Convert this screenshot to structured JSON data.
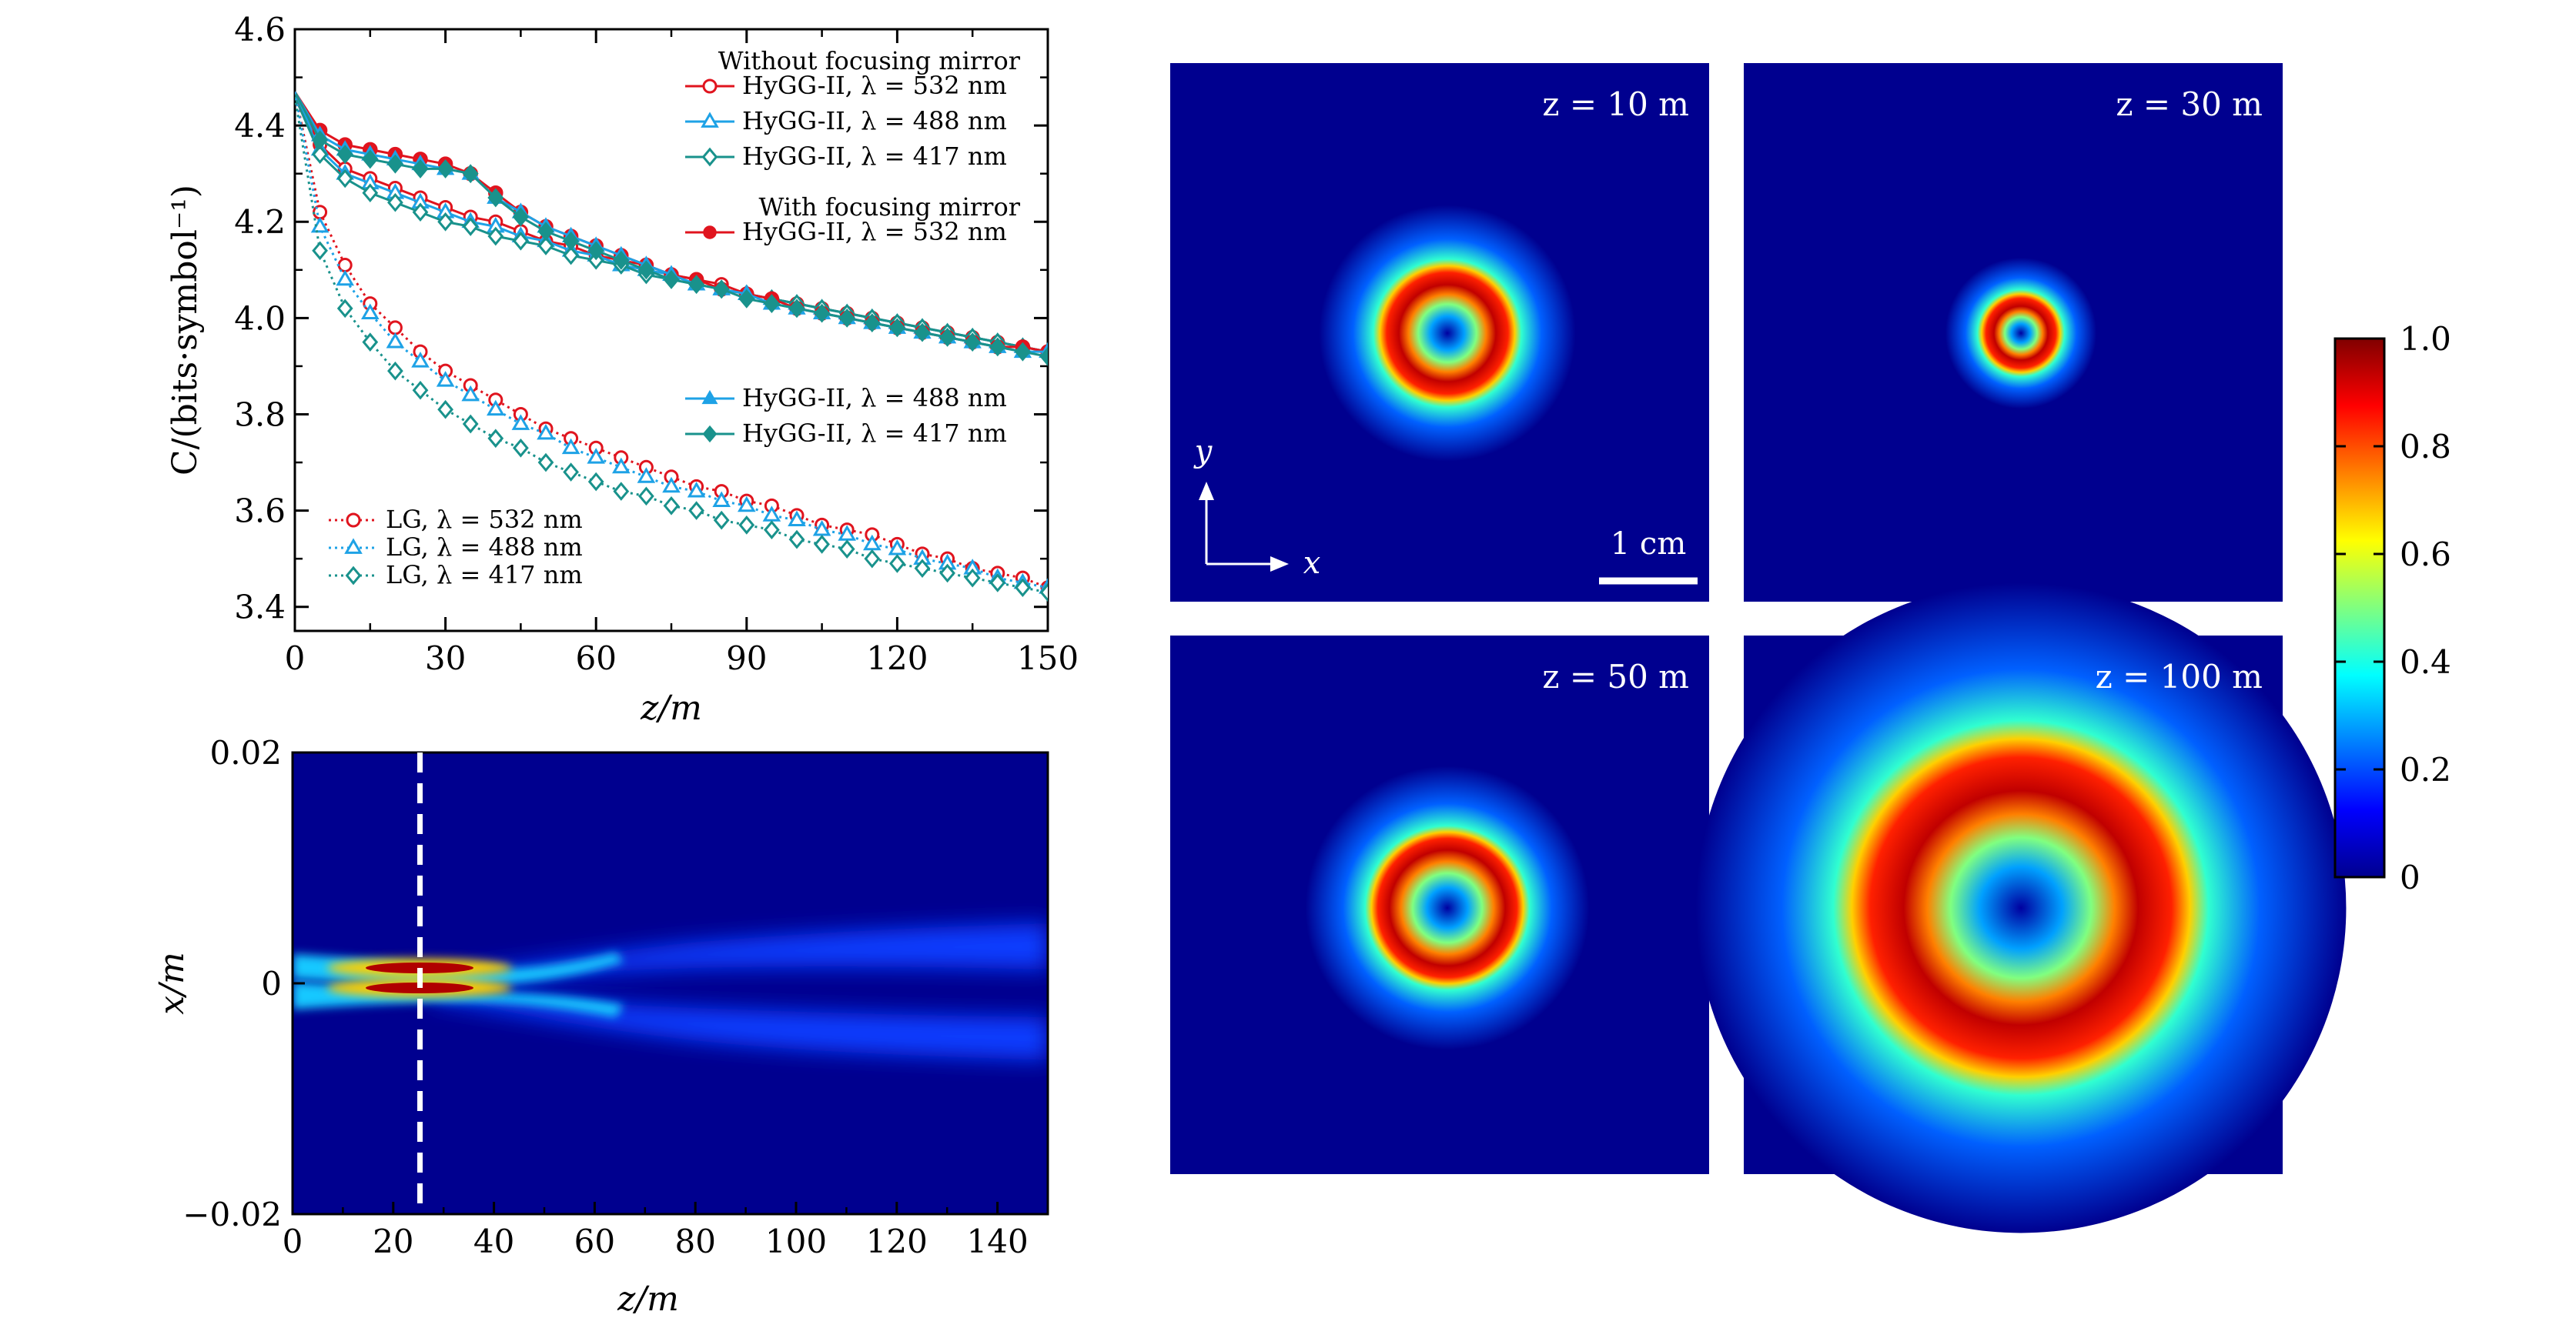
{
  "chart_data": [
    {
      "type": "line",
      "xlabel": "z/m",
      "ylabel": "C/(bits·symbol⁻¹)",
      "xlim": [
        0,
        150
      ],
      "ylim": [
        3.35,
        4.6
      ],
      "xticks": [
        "0",
        "30",
        "60",
        "90",
        "120",
        "150"
      ],
      "yticks": [
        "3.4",
        "3.6",
        "3.8",
        "4.0",
        "4.2",
        "4.4",
        "4.6"
      ],
      "legend_headers": [
        "Without focusing mirror",
        "With focusing mirror"
      ],
      "x": [
        0,
        5,
        10,
        15,
        20,
        25,
        30,
        35,
        40,
        45,
        50,
        55,
        60,
        65,
        70,
        75,
        80,
        85,
        90,
        95,
        100,
        105,
        110,
        115,
        120,
        125,
        130,
        135,
        140,
        145,
        150
      ],
      "series": [
        {
          "name": "HyGG-II, λ = 532 nm",
          "group": "without",
          "color": "#e0141e",
          "marker": "circle-open",
          "values": [
            4.47,
            4.36,
            4.31,
            4.29,
            4.27,
            4.25,
            4.23,
            4.21,
            4.2,
            4.18,
            4.16,
            4.15,
            4.13,
            4.12,
            4.11,
            4.09,
            4.08,
            4.07,
            4.05,
            4.04,
            4.03,
            4.02,
            4.01,
            4.0,
            3.99,
            3.98,
            3.97,
            3.96,
            3.95,
            3.94,
            3.93
          ]
        },
        {
          "name": "HyGG-II, λ = 488 nm",
          "group": "without",
          "color": "#1ea2e6",
          "marker": "triangle-open",
          "values": [
            4.47,
            4.35,
            4.3,
            4.28,
            4.26,
            4.24,
            4.22,
            4.2,
            4.19,
            4.17,
            4.16,
            4.14,
            4.13,
            4.11,
            4.1,
            4.09,
            4.07,
            4.06,
            4.05,
            4.04,
            4.03,
            4.02,
            4.01,
            4.0,
            3.99,
            3.98,
            3.97,
            3.96,
            3.95,
            3.94,
            3.93
          ]
        },
        {
          "name": "HyGG-II, λ = 417 nm",
          "group": "without",
          "color": "#19928c",
          "marker": "diamond-open",
          "values": [
            4.46,
            4.34,
            4.29,
            4.26,
            4.24,
            4.22,
            4.2,
            4.19,
            4.17,
            4.16,
            4.15,
            4.13,
            4.12,
            4.11,
            4.09,
            4.08,
            4.07,
            4.06,
            4.05,
            4.04,
            4.03,
            4.02,
            4.01,
            4.0,
            3.99,
            3.98,
            3.97,
            3.96,
            3.95,
            3.94,
            3.93
          ]
        },
        {
          "name": "HyGG-II, λ = 532 nm",
          "group": "with",
          "color": "#e0141e",
          "marker": "circle-filled",
          "values": [
            4.47,
            4.39,
            4.36,
            4.35,
            4.34,
            4.33,
            4.32,
            4.3,
            4.26,
            4.22,
            4.19,
            4.17,
            4.15,
            4.13,
            4.11,
            4.09,
            4.08,
            4.06,
            4.05,
            4.04,
            4.02,
            4.01,
            4.0,
            3.99,
            3.98,
            3.97,
            3.96,
            3.95,
            3.94,
            3.94,
            3.93
          ]
        },
        {
          "name": "HyGG-II, λ = 488 nm",
          "group": "with",
          "color": "#1ea2e6",
          "marker": "triangle-filled",
          "values": [
            4.47,
            4.38,
            4.35,
            4.34,
            4.33,
            4.32,
            4.31,
            4.3,
            4.25,
            4.22,
            4.19,
            4.17,
            4.15,
            4.13,
            4.11,
            4.09,
            4.07,
            4.06,
            4.05,
            4.03,
            4.02,
            4.01,
            4.0,
            3.99,
            3.98,
            3.97,
            3.96,
            3.95,
            3.94,
            3.93,
            3.93
          ]
        },
        {
          "name": "HyGG-II, λ = 417 nm",
          "group": "with",
          "color": "#19928c",
          "marker": "diamond-filled",
          "values": [
            4.47,
            4.37,
            4.34,
            4.33,
            4.32,
            4.31,
            4.31,
            4.3,
            4.25,
            4.21,
            4.18,
            4.16,
            4.14,
            4.12,
            4.1,
            4.08,
            4.07,
            4.06,
            4.04,
            4.03,
            4.02,
            4.01,
            4.0,
            3.99,
            3.98,
            3.97,
            3.96,
            3.95,
            3.94,
            3.93,
            3.92
          ]
        },
        {
          "name": "LG, λ = 532 nm",
          "group": "lg",
          "color": "#e0141e",
          "marker": "circle-open",
          "dotted": true,
          "values": [
            4.47,
            4.22,
            4.11,
            4.03,
            3.98,
            3.93,
            3.89,
            3.86,
            3.83,
            3.8,
            3.77,
            3.75,
            3.73,
            3.71,
            3.69,
            3.67,
            3.65,
            3.64,
            3.62,
            3.61,
            3.59,
            3.57,
            3.56,
            3.55,
            3.53,
            3.51,
            3.5,
            3.48,
            3.47,
            3.46,
            3.44
          ]
        },
        {
          "name": "LG, λ = 488 nm",
          "group": "lg",
          "color": "#1ea2e6",
          "marker": "triangle-open",
          "dotted": true,
          "values": [
            4.47,
            4.19,
            4.08,
            4.01,
            3.95,
            3.91,
            3.87,
            3.84,
            3.81,
            3.78,
            3.76,
            3.73,
            3.71,
            3.69,
            3.67,
            3.65,
            3.64,
            3.62,
            3.61,
            3.59,
            3.58,
            3.56,
            3.55,
            3.53,
            3.52,
            3.5,
            3.49,
            3.48,
            3.46,
            3.45,
            3.44
          ]
        },
        {
          "name": "LG, λ = 417 nm",
          "group": "lg",
          "color": "#19928c",
          "marker": "diamond-open",
          "dotted": true,
          "values": [
            4.46,
            4.14,
            4.02,
            3.95,
            3.89,
            3.85,
            3.81,
            3.78,
            3.75,
            3.73,
            3.7,
            3.68,
            3.66,
            3.64,
            3.63,
            3.61,
            3.6,
            3.58,
            3.57,
            3.56,
            3.54,
            3.53,
            3.52,
            3.5,
            3.49,
            3.48,
            3.47,
            3.46,
            3.45,
            3.44,
            3.43
          ]
        }
      ]
    },
    {
      "type": "heatmap",
      "xlabel": "z/m",
      "ylabel": "x/m",
      "xlim": [
        0,
        150
      ],
      "ylim": [
        -0.02,
        0.02
      ],
      "xticks": [
        "0",
        "20",
        "40",
        "60",
        "80",
        "100",
        "120",
        "140"
      ],
      "yticks": [
        "0.02",
        "0",
        "−0.02"
      ],
      "focus_z": 25,
      "colormap": "jet"
    },
    {
      "type": "heatmap",
      "panels": [
        {
          "label": "z = 10 m",
          "ring_radius": 0.36,
          "ring_width": 0.2
        },
        {
          "label": "z = 30 m",
          "ring_radius": 0.2,
          "ring_width": 0.13
        },
        {
          "label": "z = 50 m",
          "ring_radius": 0.43,
          "ring_width": 0.19
        },
        {
          "label": "z = 100 m",
          "ring_radius": 0.87,
          "ring_width": 0.55
        }
      ],
      "axis_y": "y",
      "axis_x": "x",
      "scale_bar": "1 cm",
      "colorbar": {
        "min": 0,
        "max": 1.0,
        "ticks": [
          "0",
          "0.2",
          "0.4",
          "0.6",
          "0.8",
          "1.0"
        ]
      },
      "colormap": "jet"
    }
  ]
}
